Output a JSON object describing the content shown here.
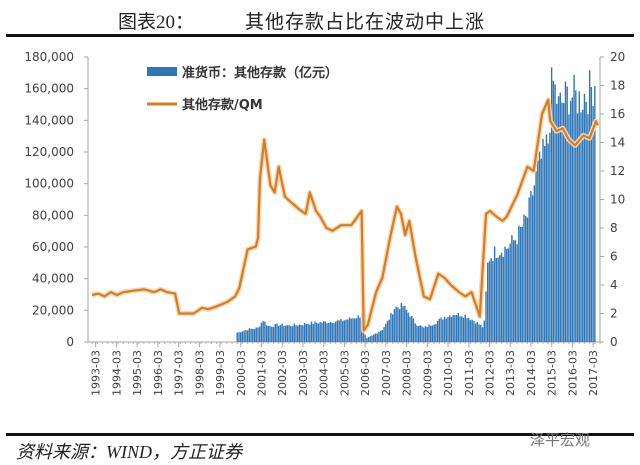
{
  "header": {
    "figure_number": "图表20：",
    "title": "其他存款占比在波动中上涨"
  },
  "footer": {
    "source": "资料来源：WIND，方正证券",
    "watermark": "泽平宏观"
  },
  "chart_data": {
    "type": "bar+line",
    "title": "其他存款占比在波动中上涨",
    "legend_position": "top-left inside",
    "grid": false,
    "x_tick_labels": [
      "1993-03",
      "1994-03",
      "1995-03",
      "1996-03",
      "1997-03",
      "1998-03",
      "1999-03",
      "2000-03",
      "2001-03",
      "2002-03",
      "2003-03",
      "2004-03",
      "2005-03",
      "2006-03",
      "2007-03",
      "2008-03",
      "2009-03",
      "2010-03",
      "2011-03",
      "2012-03",
      "2013-03",
      "2014-03",
      "2015-03",
      "2016-03",
      "2017-03"
    ],
    "y_left": {
      "label": "",
      "ticks": [
        "0",
        "20,000",
        "40,000",
        "60,000",
        "80,000",
        "100,000",
        "120,000",
        "140,000",
        "160,000",
        "180,000"
      ],
      "ylim": [
        0,
        180000
      ]
    },
    "y_right": {
      "label": "",
      "ticks": [
        "0",
        "2",
        "4",
        "6",
        "8",
        "10",
        "12",
        "14",
        "16",
        "18",
        "20"
      ],
      "ylim": [
        0,
        20
      ]
    },
    "series": [
      {
        "name": "准货币：其他存款（亿元）",
        "type": "bar",
        "axis": "left",
        "color": "#2e75b6",
        "x": [
          2000.0,
          2000.5,
          2001.0,
          2001.25,
          2001.5,
          2002.0,
          2002.5,
          2003.0,
          2003.5,
          2004.0,
          2004.5,
          2005.0,
          2005.5,
          2006.0,
          2006.2,
          2006.5,
          2007.0,
          2007.3,
          2007.6,
          2008.0,
          2008.3,
          2008.6,
          2009.0,
          2009.5,
          2010.0,
          2010.5,
          2011.0,
          2011.5,
          2011.9,
          2012.1,
          2012.5,
          2013.0,
          2013.5,
          2014.0,
          2014.5,
          2015.0,
          2015.2,
          2015.5,
          2016.0,
          2016.5,
          2017.0,
          2017.3
        ],
        "values": [
          6000,
          8000,
          9000,
          14000,
          10000,
          11000,
          10500,
          11000,
          12000,
          12500,
          13000,
          13500,
          15000,
          17000,
          2000,
          4000,
          8000,
          14000,
          22000,
          23000,
          18000,
          12000,
          9000,
          12000,
          16000,
          18000,
          17000,
          13000,
          9000,
          53000,
          58000,
          60000,
          67000,
          80000,
          110000,
          128000,
          168000,
          150000,
          158000,
          155000,
          160000,
          168000
        ]
      },
      {
        "name": "其他存款/QM",
        "type": "line",
        "axis": "right",
        "color": "#d97c1e",
        "x": [
          1993.0,
          1993.3,
          1993.6,
          1993.9,
          1994.2,
          1994.5,
          1995.0,
          1995.5,
          1996.0,
          1996.3,
          1996.6,
          1997.0,
          1997.2,
          1997.5,
          1997.9,
          1998.3,
          1998.6,
          1999.0,
          1999.5,
          1999.9,
          2000.1,
          2000.5,
          2000.9,
          2001.0,
          2001.1,
          2001.3,
          2001.6,
          2001.8,
          2002.0,
          2002.3,
          2002.6,
          2003.0,
          2003.3,
          2003.5,
          2003.8,
          2004.0,
          2004.3,
          2004.6,
          2005.0,
          2005.5,
          2006.0,
          2006.1,
          2006.3,
          2006.7,
          2007.0,
          2007.4,
          2007.7,
          2007.9,
          2008.1,
          2008.3,
          2008.6,
          2009.0,
          2009.3,
          2009.7,
          2010.0,
          2010.3,
          2010.7,
          2011.0,
          2011.3,
          2011.7,
          2012.0,
          2012.2,
          2012.5,
          2012.8,
          2013.0,
          2013.5,
          2014.0,
          2014.3,
          2014.7,
          2015.0,
          2015.1,
          2015.4,
          2015.7,
          2016.0,
          2016.3,
          2016.7,
          2017.0,
          2017.3,
          2017.4
        ],
        "values": [
          3.3,
          3.4,
          3.2,
          3.5,
          3.3,
          3.5,
          3.6,
          3.7,
          3.5,
          3.7,
          3.5,
          3.4,
          2.0,
          2.0,
          2.0,
          2.4,
          2.3,
          2.5,
          2.8,
          3.2,
          3.8,
          6.5,
          6.7,
          7.3,
          11.5,
          14.2,
          11.0,
          10.5,
          12.3,
          10.2,
          9.8,
          9.3,
          9.0,
          10.5,
          9.2,
          8.8,
          8.0,
          7.8,
          8.2,
          8.2,
          9.2,
          0.8,
          1.2,
          3.5,
          4.5,
          7.5,
          9.5,
          9.0,
          7.5,
          8.5,
          6.0,
          3.2,
          3.0,
          4.8,
          4.5,
          4.0,
          3.5,
          3.2,
          3.5,
          1.8,
          9.0,
          9.2,
          8.8,
          8.5,
          8.8,
          10.3,
          12.3,
          12.0,
          16.0,
          17.0,
          15.5,
          14.8,
          15.0,
          14.2,
          13.8,
          14.5,
          14.3,
          15.5,
          15.2
        ]
      }
    ]
  }
}
